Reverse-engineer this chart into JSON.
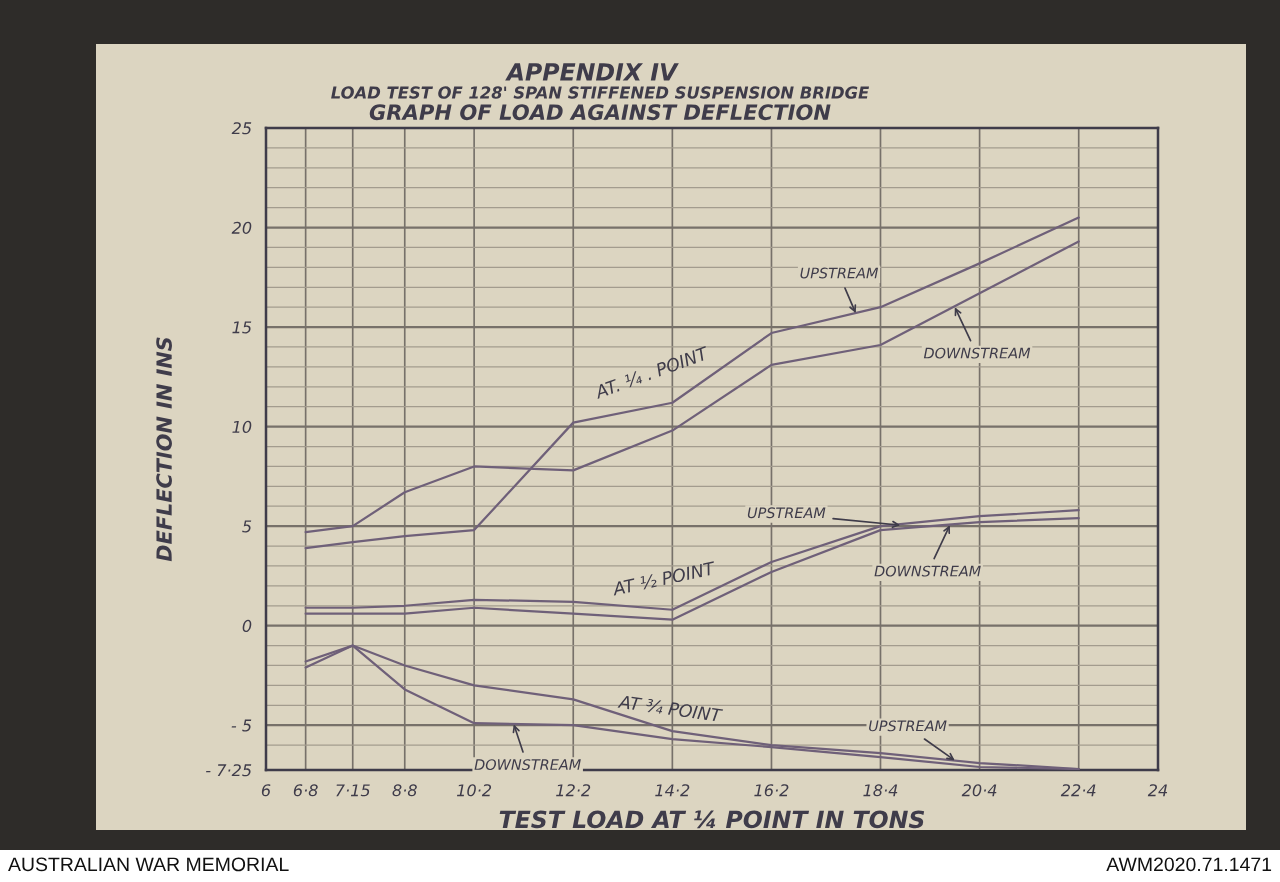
{
  "chart_data": {
    "type": "line",
    "title": "APPENDIX IV",
    "subtitle": "LOAD TEST OF 128' SPAN STIFFENED SUSPENSION BRIDGE\nGRAPH OF LOAD AGAINST DEFLECTION",
    "xlabel": "TEST LOAD AT ¼ POINT IN TONS",
    "ylabel": "DEFLECTION IN INS",
    "x": [
      6.8,
      7.75,
      8.8,
      10.2,
      12.2,
      14.2,
      16.2,
      18.4,
      20.4,
      22.4
    ],
    "series": [
      {
        "color": "#6f6079",
        "values": [
          3.9,
          4.2,
          4.5,
          4.8,
          10.2,
          11.2,
          14.7,
          16.0,
          18.2,
          20.5
        ]
      },
      {
        "color": "#6f6079",
        "values": [
          4.7,
          5.0,
          6.7,
          8.0,
          7.8,
          9.8,
          13.1,
          14.1,
          16.7,
          19.3
        ]
      },
      {
        "color": "#6f6079",
        "values": [
          0.9,
          0.9,
          1.0,
          1.3,
          1.2,
          0.8,
          3.2,
          5.0,
          5.5,
          5.8
        ]
      },
      {
        "color": "#6f6079",
        "values": [
          0.6,
          0.6,
          0.6,
          0.9,
          0.6,
          0.3,
          2.7,
          4.8,
          5.2,
          5.4
        ]
      },
      {
        "color": "#6f6079",
        "values": [
          -1.8,
          -1.0,
          -2.0,
          -3.0,
          -3.7,
          -5.3,
          -6.0,
          -6.4,
          -6.9,
          -7.2
        ]
      },
      {
        "color": "#6f6079",
        "values": [
          -2.1,
          -1.0,
          -3.2,
          -4.9,
          -5.0,
          -5.7,
          -6.1,
          -6.6,
          -7.1,
          -7.2
        ]
      }
    ],
    "xlim": [
      6,
      24
    ],
    "xticks": [
      6,
      {
        "value": 6.8,
        "label": "6·8"
      },
      {
        "value": 7.75,
        "label": "7·15"
      },
      {
        "value": 8.8,
        "label": "8·8"
      },
      {
        "value": 10.2,
        "label": "10·2"
      },
      {
        "value": 12.2,
        "label": "12·2"
      },
      {
        "value": 14.2,
        "label": "14·2"
      },
      {
        "value": 16.2,
        "label": "16·2"
      },
      {
        "value": 18.4,
        "label": "18·4"
      },
      {
        "value": 20.4,
        "label": "20·4"
      },
      {
        "value": 22.4,
        "label": "22·4"
      },
      24
    ],
    "ylim": [
      -7.25,
      25
    ],
    "yticks": [
      25,
      {
        "value": 24,
        "label": null
      },
      {
        "value": 23,
        "label": null
      },
      {
        "value": 22,
        "label": null
      },
      {
        "value": 21,
        "label": null
      },
      20,
      {
        "value": 19,
        "label": null
      },
      {
        "value": 18,
        "label": null
      },
      {
        "value": 17,
        "label": null
      },
      {
        "value": 16,
        "label": null
      },
      15,
      {
        "value": 14,
        "label": null
      },
      {
        "value": 13,
        "label": null
      },
      {
        "value": 12,
        "label": null
      },
      {
        "value": 11,
        "label": null
      },
      10,
      {
        "value": 9,
        "label": null
      },
      {
        "value": 8,
        "label": null
      },
      {
        "value": 7,
        "label": null
      },
      {
        "value": 6,
        "label": null
      },
      5,
      {
        "value": 4,
        "label": null
      },
      {
        "value": 3,
        "label": null
      },
      {
        "value": 2,
        "label": null
      },
      {
        "value": 1,
        "label": null
      },
      0,
      {
        "value": -1,
        "label": null
      },
      {
        "value": -2,
        "label": null
      },
      {
        "value": -3,
        "label": null
      },
      {
        "value": -4,
        "label": null
      },
      {
        "value": -5,
        "label": "- 5"
      },
      {
        "value": -6,
        "label": null
      },
      {
        "value": -7.25,
        "label": "- 7·25"
      }
    ],
    "grid": true,
    "annotations": [
      "AT. ¼ . POINT",
      {
        "text": "UPSTREAM",
        "x": 17.9,
        "y": 15.7
      },
      {
        "text": "DOWNSTREAM",
        "x": 19.9,
        "y": 16.0
      },
      "AT ½ POINT",
      {
        "text": "UPSTREAM",
        "x": 18.8,
        "y": 5.05
      },
      {
        "text": "DOWNSTREAM",
        "x": 19.8,
        "y": 5.05
      },
      "AT ¾ POINT",
      {
        "text": "DOWNSTREAM",
        "x": 11.0,
        "y": -4.95
      },
      {
        "text": "UPSTREAM",
        "x": 19.9,
        "y": -6.77
      },
      "AUSTRALIAN WAR MEMORIAL",
      "AWM2020.71.1471"
    ]
  }
}
